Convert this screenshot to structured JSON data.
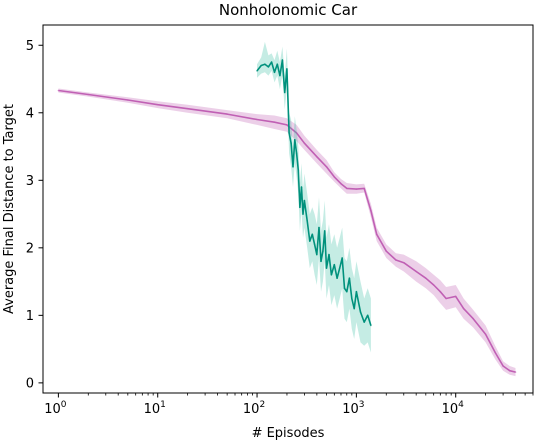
{
  "chart_data": {
    "type": "line",
    "title": "Nonholonomic Car",
    "xlabel": "# Episodes",
    "ylabel": "Average Final Distance to Target",
    "x_scale": "log",
    "xlim": [
      0.7,
      60000
    ],
    "ylim": [
      -0.15,
      5.3
    ],
    "x_ticks": [
      {
        "value": 1,
        "base": "10",
        "exp": "0"
      },
      {
        "value": 10,
        "base": "10",
        "exp": "1"
      },
      {
        "value": 100,
        "base": "10",
        "exp": "2"
      },
      {
        "value": 1000,
        "base": "10",
        "exp": "3"
      },
      {
        "value": 10000,
        "base": "10",
        "exp": "4"
      }
    ],
    "y_ticks": [
      0,
      1,
      2,
      3,
      4,
      5
    ],
    "grid": false,
    "series": [
      {
        "color": "#c060b4",
        "band_color": "#c060b4",
        "x": [
          1,
          2,
          5,
          10,
          20,
          50,
          100,
          150,
          200,
          250,
          300,
          400,
          500,
          600,
          700,
          800,
          1000,
          1200,
          1400,
          1600,
          2000,
          2500,
          3000,
          4000,
          5000,
          6000,
          7000,
          8000,
          10000,
          12000,
          15000,
          20000,
          25000,
          30000,
          35000,
          40000
        ],
        "y": [
          4.33,
          4.27,
          4.19,
          4.12,
          4.06,
          3.98,
          3.9,
          3.86,
          3.82,
          3.7,
          3.55,
          3.35,
          3.2,
          3.05,
          2.95,
          2.88,
          2.87,
          2.88,
          2.55,
          2.2,
          1.95,
          1.82,
          1.78,
          1.65,
          1.55,
          1.45,
          1.35,
          1.25,
          1.28,
          1.1,
          0.95,
          0.72,
          0.45,
          0.25,
          0.18,
          0.16
        ],
        "y_low": [
          4.3,
          4.24,
          4.15,
          4.07,
          4.0,
          3.92,
          3.82,
          3.76,
          3.72,
          3.58,
          3.45,
          3.25,
          3.1,
          2.98,
          2.88,
          2.8,
          2.8,
          2.82,
          2.45,
          2.1,
          1.85,
          1.72,
          1.65,
          1.5,
          1.4,
          1.3,
          1.18,
          1.08,
          1.12,
          0.95,
          0.82,
          0.6,
          0.35,
          0.18,
          0.12,
          0.1
        ],
        "y_high": [
          4.36,
          4.3,
          4.23,
          4.17,
          4.12,
          4.04,
          3.98,
          3.96,
          3.92,
          3.82,
          3.66,
          3.45,
          3.3,
          3.12,
          3.02,
          2.96,
          2.94,
          2.95,
          2.65,
          2.3,
          2.05,
          1.92,
          1.9,
          1.8,
          1.7,
          1.6,
          1.52,
          1.42,
          1.45,
          1.25,
          1.08,
          0.85,
          0.55,
          0.32,
          0.25,
          0.22
        ]
      },
      {
        "color": "#00917c",
        "band_color": "#3fbfa6",
        "x": [
          100,
          110,
          120,
          130,
          140,
          150,
          160,
          170,
          180,
          190,
          200,
          210,
          220,
          230,
          240,
          250,
          260,
          270,
          280,
          290,
          300,
          320,
          340,
          360,
          380,
          400,
          420,
          440,
          460,
          480,
          500,
          530,
          560,
          600,
          640,
          680,
          720,
          760,
          800,
          850,
          900,
          950,
          1000,
          1100,
          1200,
          1300,
          1400
        ],
        "y": [
          4.62,
          4.7,
          4.72,
          4.68,
          4.75,
          4.6,
          4.72,
          4.55,
          4.78,
          4.3,
          4.65,
          3.7,
          3.55,
          3.2,
          3.6,
          3.4,
          3.15,
          2.6,
          2.9,
          2.5,
          2.7,
          2.4,
          2.1,
          2.2,
          2.05,
          1.9,
          2.3,
          1.8,
          1.95,
          2.25,
          1.7,
          1.9,
          1.6,
          1.75,
          1.55,
          1.7,
          1.85,
          1.4,
          1.35,
          1.55,
          1.25,
          1.1,
          1.35,
          1.05,
          0.9,
          1.0,
          0.85
        ],
        "y_low": [
          4.52,
          4.58,
          4.6,
          4.55,
          4.62,
          4.45,
          4.55,
          4.35,
          4.55,
          4.05,
          4.35,
          3.4,
          3.2,
          2.9,
          3.25,
          3.05,
          2.8,
          2.25,
          2.55,
          2.15,
          2.3,
          2.0,
          1.7,
          1.8,
          1.6,
          1.45,
          1.85,
          1.35,
          1.5,
          1.8,
          1.25,
          1.45,
          1.15,
          1.3,
          1.1,
          1.25,
          1.4,
          0.95,
          0.9,
          1.1,
          0.8,
          0.65,
          0.9,
          0.6,
          0.55,
          0.6,
          0.45
        ],
        "y_high": [
          4.72,
          4.82,
          5.05,
          4.85,
          4.88,
          4.78,
          4.92,
          4.75,
          4.98,
          4.55,
          4.95,
          4.0,
          3.9,
          3.5,
          3.95,
          3.75,
          3.5,
          2.95,
          3.25,
          2.85,
          3.1,
          2.8,
          2.5,
          2.6,
          2.5,
          2.35,
          2.75,
          2.25,
          2.4,
          2.7,
          2.15,
          2.35,
          2.05,
          2.2,
          2.0,
          2.15,
          2.3,
          1.85,
          1.8,
          2.0,
          1.7,
          1.55,
          1.8,
          1.5,
          1.25,
          1.4,
          1.25
        ]
      }
    ]
  }
}
